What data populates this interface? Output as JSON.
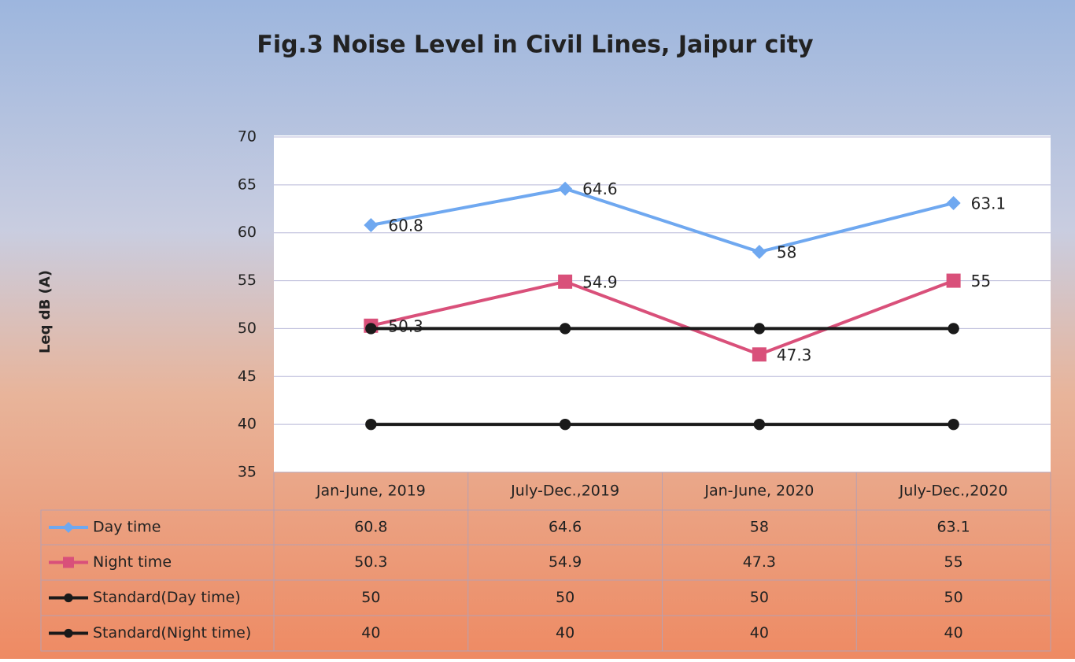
{
  "chart_data": {
    "type": "line",
    "title": "Fig.3 Noise Level in Civil Lines, Jaipur city",
    "y_label": "Leq dB (A)",
    "categories": [
      "Jan-June, 2019",
      "July-Dec.,2019",
      "Jan-June, 2020",
      "July-Dec.,2020"
    ],
    "series": [
      {
        "name": "Day time",
        "color": "#6fa8f0",
        "marker": "diamond",
        "data_labels": true,
        "values": [
          60.8,
          64.6,
          58,
          63.1
        ]
      },
      {
        "name": "Night time",
        "color": "#d9507a",
        "marker": "square",
        "data_labels": true,
        "values": [
          50.3,
          54.9,
          47.3,
          55
        ]
      },
      {
        "name": "Standard(Day time)",
        "color": "#1a1a1a",
        "marker": "circle",
        "data_labels": false,
        "values": [
          50,
          50,
          50,
          50
        ]
      },
      {
        "name": "Standard(Night time)",
        "color": "#1a1a1a",
        "marker": "circle",
        "data_labels": false,
        "values": [
          40,
          40,
          40,
          40
        ]
      }
    ],
    "ylim": [
      35,
      70
    ],
    "yticks": [
      35,
      40,
      45,
      50,
      55,
      60,
      65,
      70
    ],
    "grid": true,
    "data_table": true
  }
}
